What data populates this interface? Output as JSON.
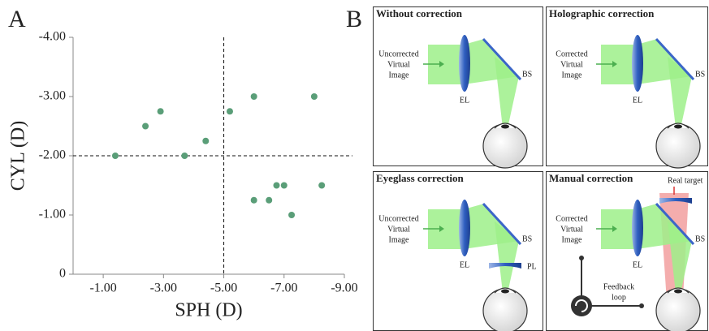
{
  "panel_labels": [
    "A",
    "B"
  ],
  "chart_data": {
    "type": "scatter",
    "xlabel": "SPH (D)",
    "ylabel": "CYL (D)",
    "x": [
      -1.4,
      -2.4,
      -2.9,
      -3.7,
      -4.4,
      -5.2,
      -6.0,
      -6.0,
      -6.5,
      -6.75,
      -7.0,
      -7.25,
      -8.0,
      -8.25
    ],
    "values": [
      -2.0,
      -2.5,
      -2.75,
      -2.0,
      -2.25,
      -2.75,
      -3.0,
      -1.25,
      -1.25,
      -1.5,
      -1.5,
      -1.0,
      -3.0,
      -1.5
    ],
    "color": "#5a9e78",
    "xlim": [
      0,
      -9
    ],
    "ylim": [
      0,
      -4
    ],
    "xticks": [
      {
        "value": -1,
        "label": "-1.00"
      },
      {
        "value": -3,
        "label": "-3.00"
      },
      {
        "value": -5,
        "label": "-5.00"
      },
      {
        "value": -7,
        "label": "-7.00"
      },
      {
        "value": -9,
        "label": "-9.00"
      }
    ],
    "yticks": [
      0,
      {
        "value": -1,
        "label": "-1.00"
      },
      {
        "value": -2,
        "label": "-2.00"
      },
      {
        "value": -3,
        "label": "-3.00"
      },
      {
        "value": -4,
        "label": "-4.00"
      }
    ],
    "vlines": [
      -5
    ],
    "hlines": [
      -2
    ]
  },
  "panels": [
    {
      "title": "Without correction",
      "image_label": [
        "Uncorrected",
        "Virtual",
        "Image"
      ],
      "lens_label": "EL",
      "splitter_label": "BS"
    },
    {
      "title": "Holographic correction",
      "image_label": [
        "Corrected",
        "Virtual",
        "Image"
      ],
      "lens_label": "EL",
      "splitter_label": "BS"
    },
    {
      "title": "Eyeglass correction",
      "image_label": [
        "Uncorrected",
        "Virtual",
        "Image"
      ],
      "lens_label": "EL",
      "splitter_label": "BS",
      "eyeglass_label": "PL"
    },
    {
      "title": "Manual correction",
      "image_label": [
        "Corrected",
        "Virtual",
        "Image"
      ],
      "lens_label": "EL",
      "splitter_label": "BS",
      "target_label": "Real target",
      "feedback_label": [
        "Feedback",
        "loop"
      ]
    }
  ]
}
